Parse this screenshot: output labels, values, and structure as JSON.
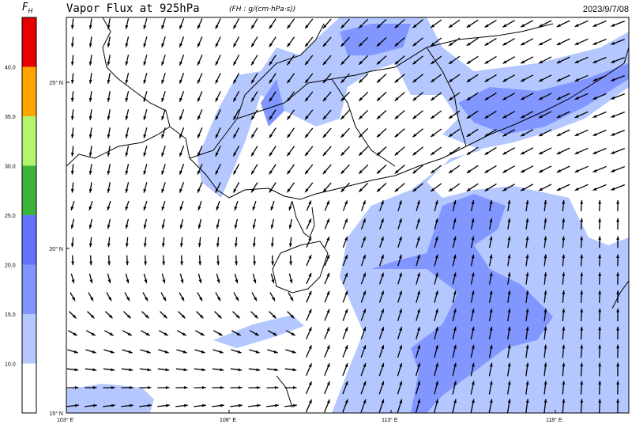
{
  "header": {
    "title": "Vapor Flux at 925hPa",
    "units": "(FH : g/(cm·hPa·s))",
    "datetime": "2023/9/7/08"
  },
  "colorbar": {
    "title": "F",
    "title_sub": "H",
    "labels": [
      "40.0",
      "35.0",
      "30.0",
      "25.0",
      "20.0",
      "15.0",
      "10.0"
    ],
    "colors_top_to_bottom": [
      "#e60000",
      "#ffa500",
      "#b4f56e",
      "#3cb43c",
      "#6473ff",
      "#8296ff",
      "#b4c8ff",
      "#ffffff"
    ]
  },
  "map": {
    "lat_labels": [
      "25° N",
      "20° N",
      "15° N"
    ],
    "lon_labels": [
      "103° E",
      "108° E",
      "113° E",
      "118° E"
    ],
    "shade_colors": {
      "light": "#b4c8ff",
      "medium": "#8296ff",
      "land_line": "#000000"
    }
  }
}
